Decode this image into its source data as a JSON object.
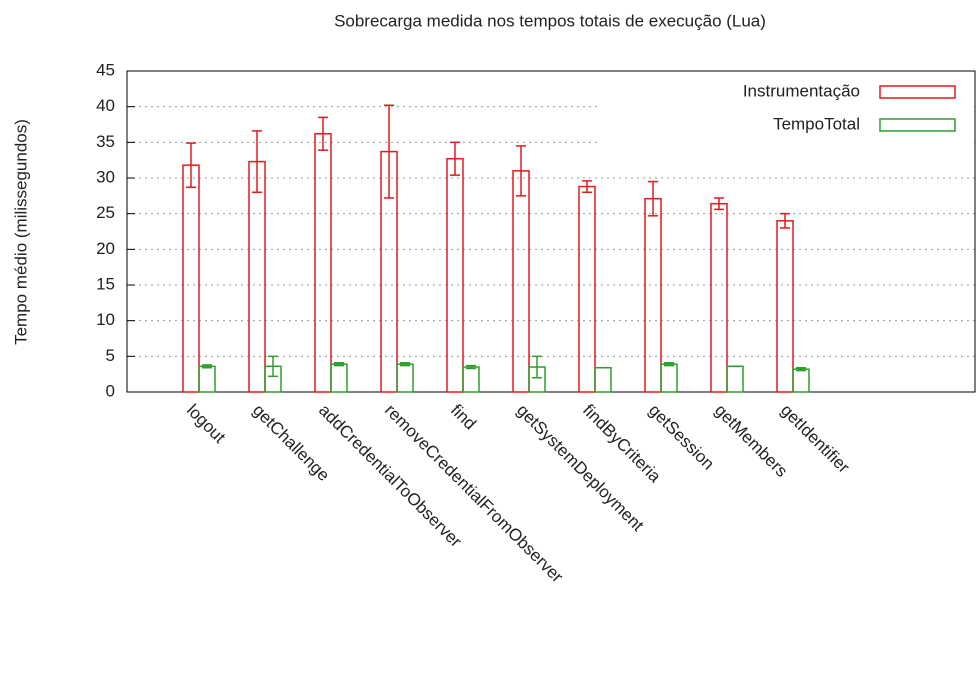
{
  "chart_data": {
    "type": "bar",
    "title": "Sobrecarga medida nos tempos totais de execução (Lua)",
    "y_label": "Tempo médio (milissegundos)",
    "categories": [
      "logout",
      "getChallenge",
      "addCredentialToObserver",
      "removeCredentialFromObserver",
      "find",
      "getSystemDeployment",
      "findByCriteria",
      "getSession",
      "getMembers",
      "getIdentifier"
    ],
    "series": [
      {
        "name": "Instrumentação",
        "color": "#e41a1c",
        "values": [
          31.8,
          32.3,
          36.2,
          33.7,
          32.7,
          31.0,
          28.8,
          27.1,
          26.4,
          24.0
        ],
        "errors": [
          3.1,
          4.3,
          2.3,
          6.5,
          2.3,
          3.5,
          0.8,
          2.4,
          0.8,
          1.0
        ]
      },
      {
        "name": "TempoTotal",
        "color": "#2ca02c",
        "values": [
          3.6,
          3.6,
          3.9,
          3.9,
          3.5,
          3.5,
          3.4,
          3.9,
          3.6,
          3.2
        ],
        "errors": [
          0.2,
          1.4,
          0.2,
          0.2,
          0.2,
          1.5,
          0,
          0.2,
          0,
          0.2
        ]
      }
    ],
    "ylim": [
      0,
      45
    ],
    "yticks": [
      0,
      5,
      10,
      15,
      20,
      25,
      30,
      35,
      40,
      45
    ],
    "grid": true,
    "legend": "top-right"
  }
}
